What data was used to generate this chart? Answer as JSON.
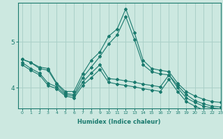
{
  "xlabel": "Humidex (Indice chaleur)",
  "ylabel": "",
  "background_color": "#cce8e0",
  "line_color": "#1a7a6e",
  "grid_color": "#aad0c8",
  "xlim": [
    -0.5,
    23
  ],
  "ylim": [
    3.55,
    5.85
  ],
  "yticks": [
    4,
    5
  ],
  "xticks": [
    0,
    1,
    2,
    3,
    4,
    5,
    6,
    7,
    8,
    9,
    10,
    11,
    12,
    13,
    14,
    15,
    16,
    17,
    18,
    19,
    20,
    21,
    22,
    23
  ],
  "lines": [
    [
      4.62,
      4.55,
      4.45,
      4.42,
      4.1,
      3.92,
      3.92,
      4.3,
      4.6,
      4.78,
      5.12,
      5.28,
      5.72,
      5.2,
      4.6,
      4.42,
      4.38,
      4.35,
      4.1,
      3.92,
      3.82,
      3.75,
      3.7,
      3.68
    ],
    [
      4.62,
      4.55,
      4.42,
      4.38,
      4.08,
      3.88,
      3.85,
      4.22,
      4.45,
      4.68,
      4.95,
      5.15,
      5.55,
      5.05,
      4.5,
      4.35,
      4.3,
      4.28,
      4.05,
      3.85,
      3.72,
      3.65,
      3.6,
      3.58
    ],
    [
      4.55,
      4.42,
      4.32,
      4.1,
      4.02,
      3.85,
      3.82,
      4.12,
      4.32,
      4.5,
      4.2,
      4.18,
      4.15,
      4.12,
      4.08,
      4.05,
      4.02,
      4.28,
      4.0,
      3.78,
      3.68,
      3.6,
      3.56,
      3.54
    ],
    [
      4.5,
      4.38,
      4.28,
      4.05,
      3.98,
      3.82,
      3.78,
      4.05,
      4.22,
      4.4,
      4.12,
      4.08,
      4.05,
      4.02,
      3.98,
      3.95,
      3.92,
      4.18,
      3.92,
      3.7,
      3.6,
      3.52,
      3.48,
      3.46
    ]
  ]
}
